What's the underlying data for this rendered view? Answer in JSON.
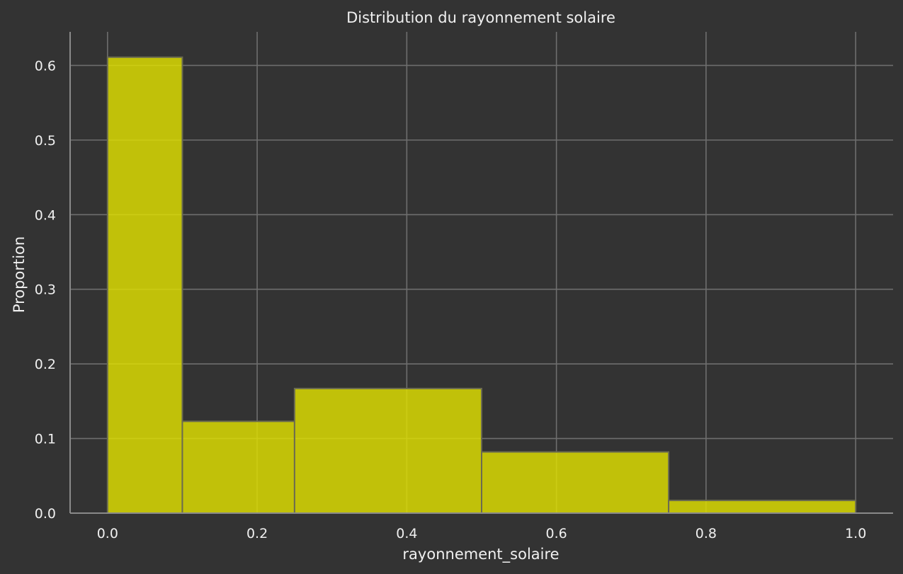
{
  "chart_data": {
    "type": "bar",
    "title": "Distribution du rayonnement solaire",
    "xlabel": "rayonnement_solaire",
    "ylabel": "Proportion",
    "xlim": [
      -0.05,
      1.05
    ],
    "ylim": [
      0,
      0.645
    ],
    "xticks": [
      0.0,
      0.2,
      0.4,
      0.6,
      0.8,
      1.0
    ],
    "xtick_labels": [
      "0.0",
      "0.2",
      "0.4",
      "0.6",
      "0.8",
      "1.0"
    ],
    "yticks": [
      0.0,
      0.1,
      0.2,
      0.3,
      0.4,
      0.5,
      0.6
    ],
    "ytick_labels": [
      "0.0",
      "0.1",
      "0.2",
      "0.3",
      "0.4",
      "0.5",
      "0.6"
    ],
    "grid": true,
    "bins": [
      {
        "x0": 0.0,
        "x1": 0.1,
        "value": 0.611
      },
      {
        "x0": 0.1,
        "x1": 0.25,
        "value": 0.123
      },
      {
        "x0": 0.25,
        "x1": 0.5,
        "value": 0.167
      },
      {
        "x0": 0.5,
        "x1": 0.75,
        "value": 0.082
      },
      {
        "x0": 0.75,
        "x1": 1.0,
        "value": 0.017
      }
    ],
    "colors": {
      "bar": "#e0e000",
      "background": "#333333",
      "grid": "#6e6e6e"
    }
  }
}
